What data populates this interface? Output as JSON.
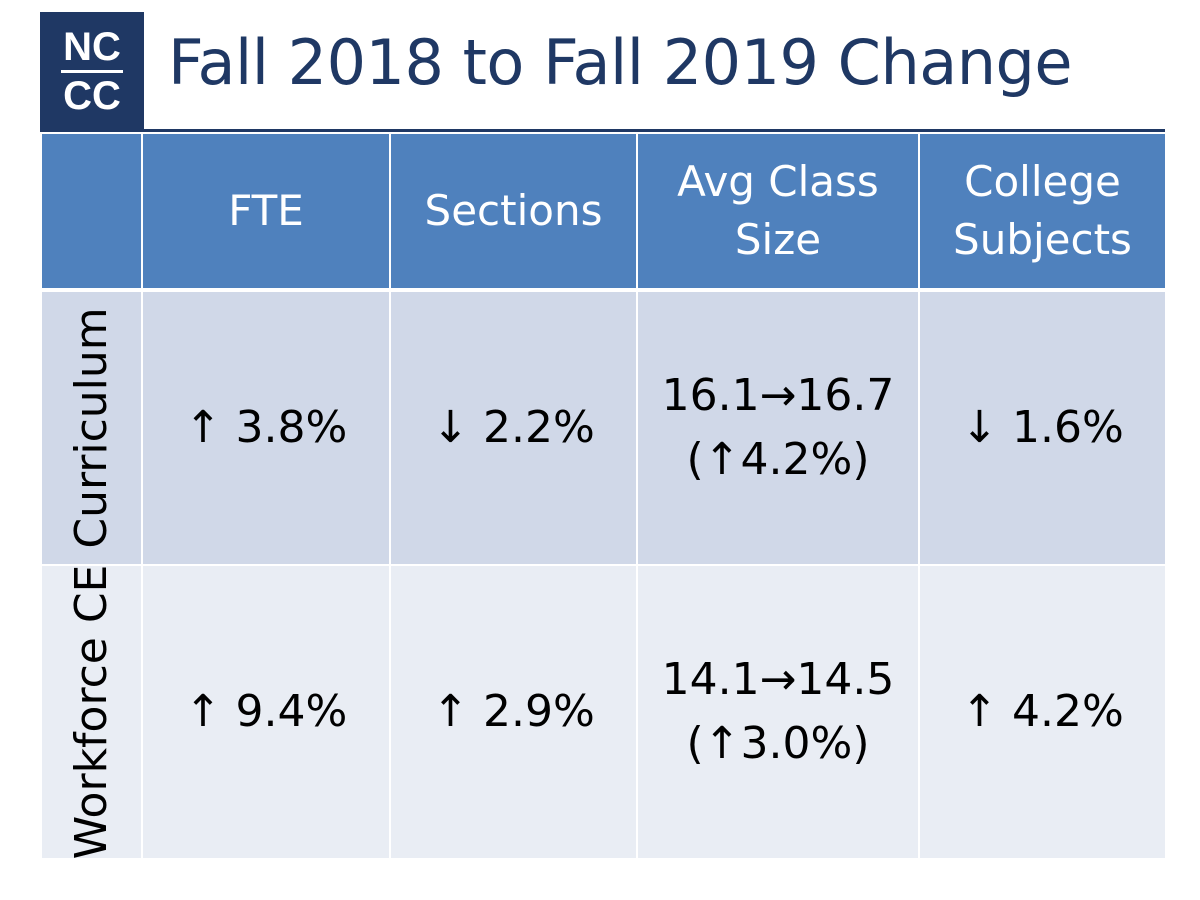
{
  "logo": {
    "line1": "NC",
    "line2": "CC"
  },
  "title": "Fall 2018 to Fall 2019 Change",
  "table": {
    "headers": [
      "",
      "FTE",
      "Sections",
      "Avg Class Size",
      "College Subjects"
    ],
    "header_lines": {
      "avg_class_size": [
        "Avg Class",
        "Size"
      ],
      "college_subjects": [
        "College",
        "Subjects"
      ]
    },
    "rows": [
      {
        "label": "Curriculum",
        "fte": "↑ 3.8%",
        "sections": "↓ 2.2%",
        "avg_class_size": [
          "16.1→16.7",
          "(↑4.2%)"
        ],
        "college_subjects": "↓ 1.6%"
      },
      {
        "label": "Workforce CE",
        "fte": "↑ 9.4%",
        "sections": "↑ 2.9%",
        "avg_class_size": [
          "14.1→14.5",
          "(↑3.0%)"
        ],
        "college_subjects": "↑ 4.2%"
      }
    ]
  },
  "colors": {
    "navy": "#1f3864",
    "header_blue": "#4f81bd",
    "row1_bg": "#d0d8e8",
    "row2_bg": "#e9edf4"
  }
}
